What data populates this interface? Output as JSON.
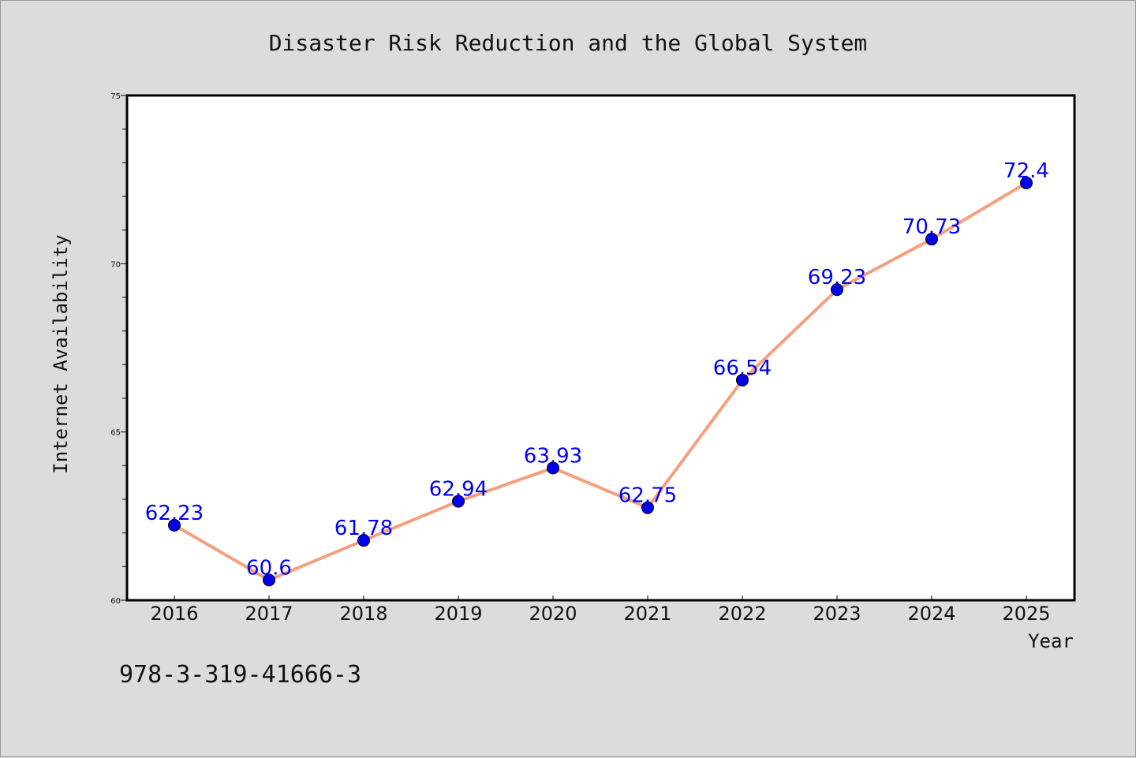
{
  "chart_data": {
    "type": "line",
    "title": "Disaster Risk Reduction and the Global System",
    "xlabel": "Year",
    "ylabel": "Internet Availability",
    "categories": [
      "2016",
      "2017",
      "2018",
      "2019",
      "2020",
      "2021",
      "2022",
      "2023",
      "2024",
      "2025"
    ],
    "values": [
      62.23,
      60.6,
      61.78,
      62.94,
      63.93,
      62.75,
      66.54,
      69.23,
      70.73,
      72.4
    ],
    "data_labels": [
      "62.23",
      "60.6",
      "61.78",
      "62.94",
      "63.93",
      "62.75",
      "66.54",
      "69.23",
      "70.73",
      "72.4"
    ],
    "ylim": [
      60,
      75
    ],
    "yticks": [
      60,
      65,
      70,
      75
    ],
    "grid": false,
    "line_color": "#f4a07e",
    "marker_color": "#0000ee",
    "label_color": "#0000ee"
  },
  "footnote": "978-3-319-41666-3"
}
